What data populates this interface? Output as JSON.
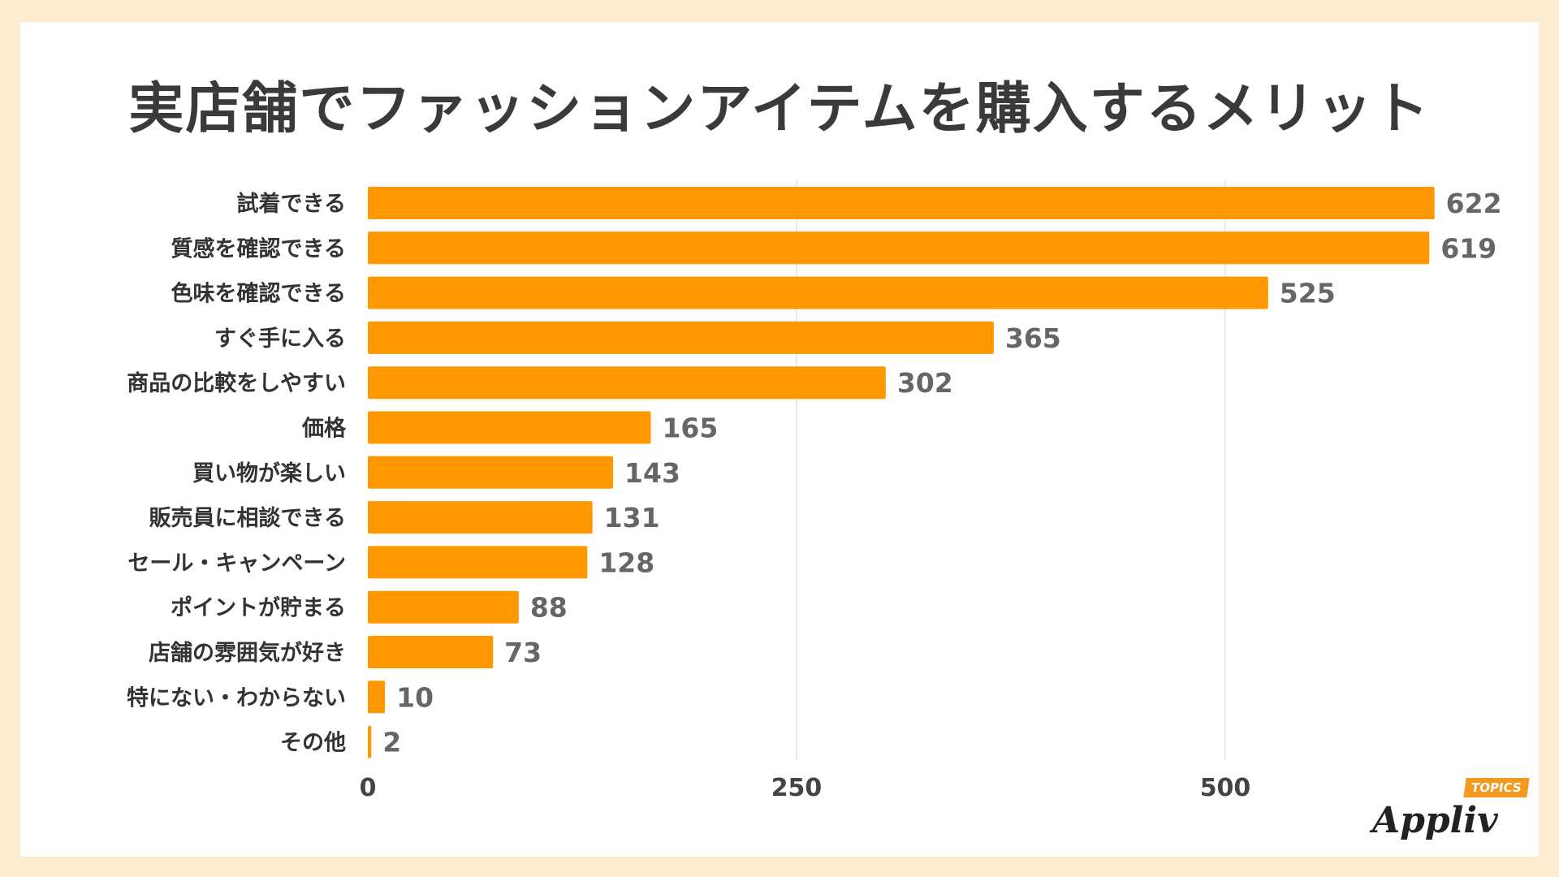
{
  "chart_data": {
    "type": "bar",
    "orientation": "horizontal",
    "title": "実店舗でファッションアイテムを購入するメリット",
    "categories": [
      "試着できる",
      "質感を確認できる",
      "色味を確認できる",
      "すぐ手に入る",
      "商品の比較をしやすい",
      "価格",
      "買い物が楽しい",
      "販売員に相談できる",
      "セール・キャンペーン",
      "ポイントが貯まる",
      "店舗の雰囲気が好き",
      "特にない・わからない",
      "その他"
    ],
    "values": [
      622,
      619,
      525,
      365,
      302,
      165,
      143,
      131,
      128,
      88,
      73,
      10,
      2
    ],
    "xticks": [
      0,
      250,
      500
    ],
    "xlim": [
      0,
      650
    ],
    "grid": true,
    "bar_color": "#ff9800",
    "legend": "none"
  },
  "logo": {
    "word": "Appliv",
    "tag": "TOPICS"
  }
}
